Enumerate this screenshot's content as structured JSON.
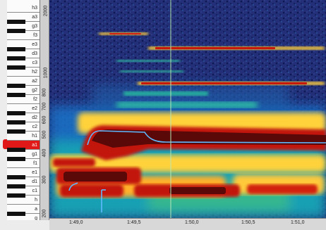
{
  "keyboard": {
    "labeled_keys": [
      {
        "note": "h3"
      },
      {
        "note": "a3"
      },
      {
        "note": "g3"
      },
      {
        "note": "f3"
      },
      {
        "note": "e3"
      },
      {
        "note": "d3"
      },
      {
        "note": "c3"
      },
      {
        "note": "h2"
      },
      {
        "note": "a2"
      },
      {
        "note": "g2"
      },
      {
        "note": "f2"
      },
      {
        "note": "e2"
      },
      {
        "note": "d2"
      },
      {
        "note": "c2"
      },
      {
        "note": "h1"
      },
      {
        "note": "a1",
        "active": true
      },
      {
        "note": "g1"
      },
      {
        "note": "f1"
      },
      {
        "note": "e1"
      },
      {
        "note": "d1"
      },
      {
        "note": "c1"
      },
      {
        "note": "h"
      },
      {
        "note": "a"
      },
      {
        "note": "g"
      }
    ],
    "active_key": "a1",
    "active_color": "#e11818"
  },
  "freq_axis": {
    "labels": [
      "2000",
      "1000",
      "800",
      "700",
      "600",
      "500",
      "400",
      "300",
      "200"
    ]
  },
  "time_axis": {
    "labels": [
      "1:49,0",
      "1:49,5",
      "1:50,0",
      "1:50,5",
      "1:51,0"
    ]
  },
  "spectrogram": {
    "colors": {
      "background": "#1f2a6e",
      "low": "#1a7bd0",
      "mid": "#19c7b3",
      "high": "#ffd23a",
      "peak": "#c2140a",
      "core": "#5a0808",
      "pitch_track": "#5fb9ff",
      "cursor": "#b6e8b6"
    },
    "pitch_track_color": "#5fb9ff"
  }
}
